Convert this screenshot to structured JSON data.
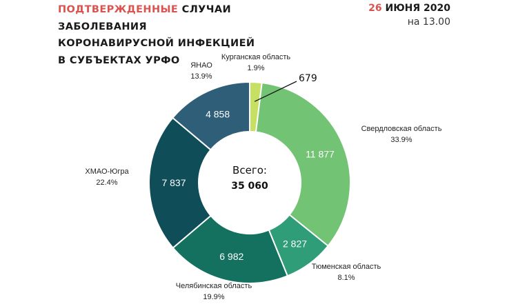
{
  "header": {
    "title_red": "ПОДТВЕРЖДЕННЫЕ",
    "title_rest_1": " СЛУЧАИ",
    "title_line2": "ЗАБОЛЕВАНИЯ",
    "title_line3": "КОРОНАВИРУСНОЙ ИНФЕКЦИЕЙ",
    "title_line4": "В СУБЪЕКТАХ УРФО",
    "date_num": "26",
    "date_rest": " ИЮНЯ 2020",
    "time": "на 13.00"
  },
  "center": {
    "label": "Всего:",
    "total": "35 060"
  },
  "chart_data": {
    "type": "pie",
    "donut": true,
    "total": 35060,
    "slices": [
      {
        "label": "Курганская область",
        "value": 679,
        "value_text": "679",
        "percent": "1.9%",
        "color": "#c5e063"
      },
      {
        "label": "Свердловская область",
        "value": 11877,
        "value_text": "11 877",
        "percent": "33.9%",
        "color": "#72c474"
      },
      {
        "label": "Тюменская область",
        "value": 2827,
        "value_text": "2 827",
        "percent": "8.1%",
        "color": "#2f9e78"
      },
      {
        "label": "Челябинская область",
        "value": 6982,
        "value_text": "6 982",
        "percent": "19.9%",
        "color": "#15715f"
      },
      {
        "label": "ХМАО-Югра",
        "value": 7837,
        "value_text": "7 837",
        "percent": "22.4%",
        "color": "#0f4d59"
      },
      {
        "label": "ЯНАО",
        "value": 4858,
        "value_text": "4 858",
        "percent": "13.9%",
        "color": "#2f5f78"
      }
    ]
  }
}
